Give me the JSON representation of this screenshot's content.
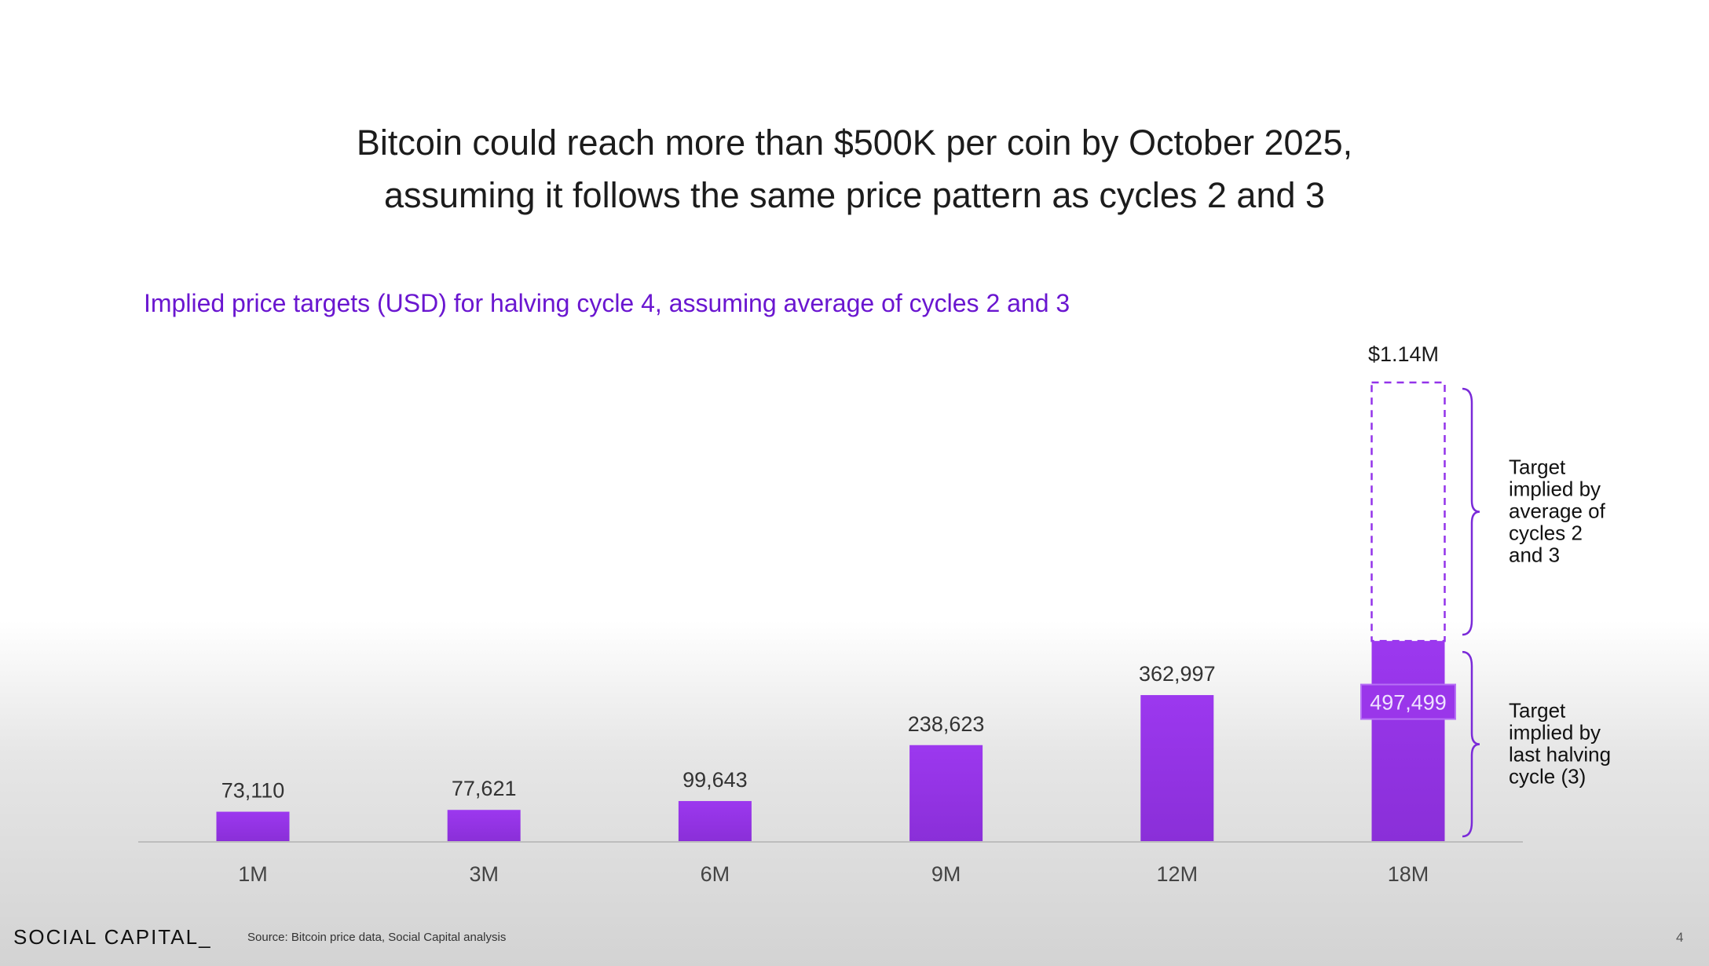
{
  "title_lines": [
    "Bitcoin could reach more than $500K per coin by October 2025,",
    "assuming it follows the same price pattern as cycles 2 and 3"
  ],
  "chart_data": {
    "type": "bar",
    "title": "Implied price targets (USD) for halving cycle 4, assuming average of cycles 2 and 3",
    "categories": [
      "1M",
      "3M",
      "6M",
      "9M",
      "12M",
      "18M"
    ],
    "values": [
      73110,
      77621,
      99643,
      238623,
      362997,
      497499
    ],
    "value_labels": [
      "73,110",
      "77,621",
      "99,643",
      "238,623",
      "362,997",
      "497,499"
    ],
    "extension": {
      "category": "18M",
      "value": 1140000,
      "label": "$1.14M",
      "style": "dashed-outline"
    },
    "annotations": [
      {
        "text": [
          "Target",
          "implied by",
          "average of",
          "cycles 2",
          "and 3"
        ],
        "range": [
          497499,
          1140000
        ]
      },
      {
        "text": [
          "Target",
          "implied by",
          "last halving",
          "cycle (3)"
        ],
        "range": [
          0,
          497499
        ]
      }
    ],
    "ylim": [
      0,
      1140000
    ],
    "grid": false,
    "bar_color": "#9333ea",
    "accent_color": "#6a16d0"
  },
  "footer": {
    "logo": "SOCIAL CAPITAL_",
    "source": "Source: Bitcoin price data, Social Capital analysis",
    "page": "4"
  }
}
